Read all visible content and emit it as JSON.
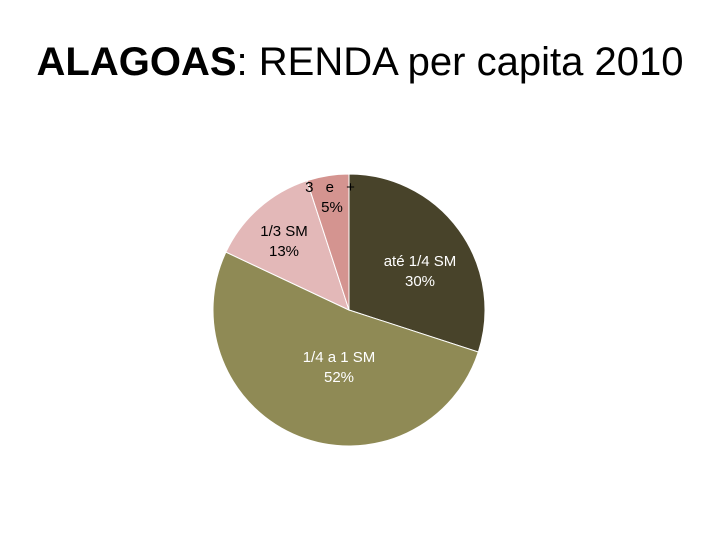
{
  "slide": {
    "title_bold": "ALAGOAS",
    "title_rest": ": RENDA per capita 2010"
  },
  "chart_data": {
    "type": "pie",
    "title": "ALAGOAS: RENDA per capita 2010",
    "start_angle_deg": 0,
    "direction": "clockwise",
    "slices": [
      {
        "label": "até 1/4 SM",
        "value_text": "30%",
        "value": 30,
        "color": "#48432a",
        "label_color": "#ffffff"
      },
      {
        "label": "1/4 a 1 SM",
        "value_text": "52%",
        "value": 52,
        "color": "#8f8a55",
        "label_color": "#ffffff"
      },
      {
        "label": "1/3 SM",
        "value_text": "13%",
        "value": 13,
        "color": "#e3b8b8",
        "label_color": "#000000"
      },
      {
        "label": "3 e +",
        "value_text": "5%",
        "value": 5,
        "color": "#d49490",
        "label_color": "#000000"
      }
    ]
  }
}
